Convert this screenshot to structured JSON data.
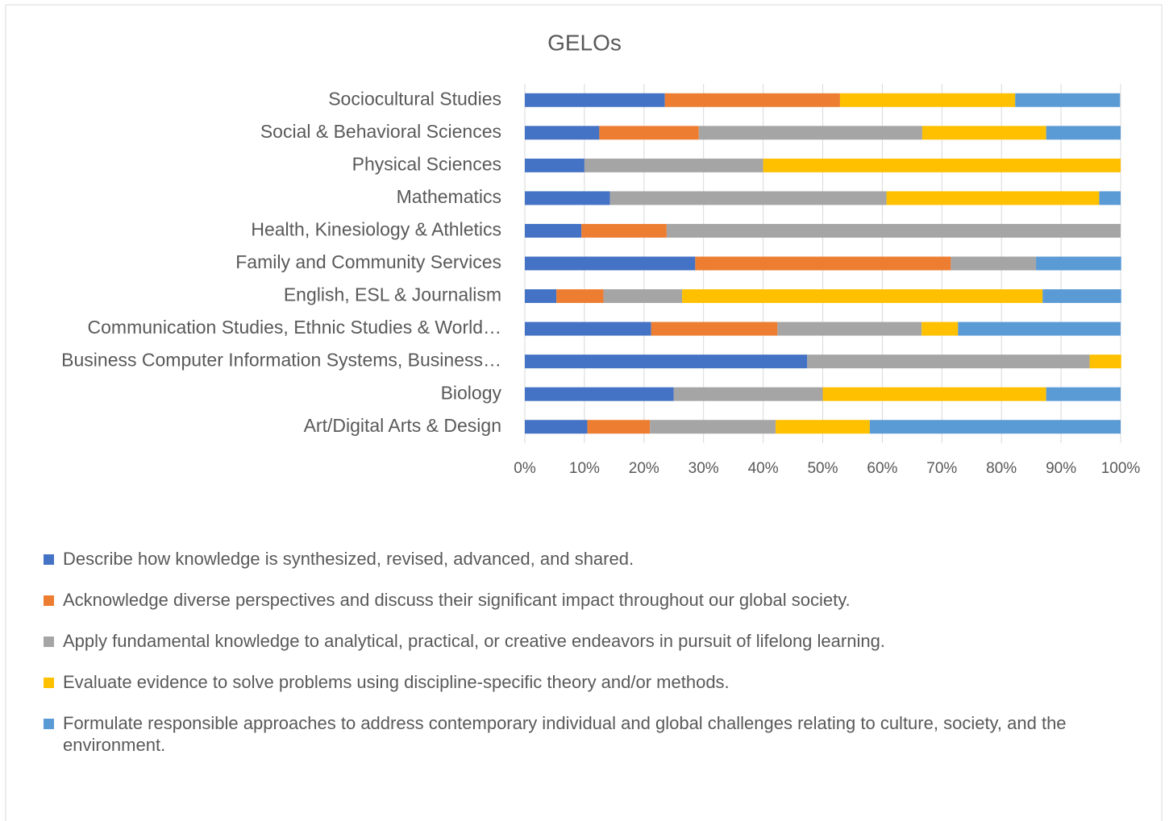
{
  "chart_data": {
    "type": "stacked_bar_horizontal",
    "title": "GELOs",
    "categories": [
      "Art/Digital Arts & Design",
      "Biology",
      "Business Computer Information Systems, Business…",
      "Communication Studies, Ethnic Studies & World…",
      "English, ESL & Journalism",
      "Family and Community Services",
      "Health, Kinesiology & Athletics",
      "Mathematics",
      "Physical Sciences",
      "Social & Behavioral Sciences",
      "Sociocultural Studies"
    ],
    "series": [
      {
        "name": "Describe how knowledge is synthesized, revised, advanced, and shared.",
        "color": "#4472c4",
        "values": [
          10.5,
          25,
          47.4,
          21.2,
          5.3,
          28.6,
          9.5,
          14.3,
          10,
          12.5,
          23.5
        ]
      },
      {
        "name": "Acknowledge diverse perspectives and discuss their significant impact throughout our global society.",
        "color": "#ed7d31",
        "values": [
          10.5,
          0,
          0,
          21.2,
          7.9,
          42.9,
          14.3,
          0,
          0,
          16.7,
          29.4
        ]
      },
      {
        "name": "Apply fundamental knowledge to analytical, practical, or creative endeavors in pursuit of lifelong learning.",
        "color": "#a5a5a5",
        "values": [
          21.1,
          25,
          47.4,
          24.2,
          13.2,
          14.3,
          76.2,
          46.4,
          30,
          37.5,
          0
        ]
      },
      {
        "name": "Evaluate evidence to solve problems using discipline-specific theory and/or methods.",
        "color": "#ffc000",
        "values": [
          15.8,
          37.5,
          5.3,
          6.1,
          60.5,
          0,
          0,
          35.7,
          60,
          20.8,
          29.4
        ]
      },
      {
        "name": "Formulate responsible approaches to address contemporary individual and global challenges relating to culture, society, and the environment.",
        "color": "#5b9bd5",
        "values": [
          42.1,
          12.5,
          0,
          27.3,
          13.2,
          14.3,
          0,
          3.6,
          0,
          12.5,
          17.6
        ]
      }
    ],
    "xlim": [
      0,
      100
    ],
    "xticks": [
      {
        "value": 0,
        "label": "0%"
      },
      {
        "value": 10,
        "label": "10%"
      },
      {
        "value": 20,
        "label": "20%"
      },
      {
        "value": 30,
        "label": "30%"
      },
      {
        "value": 40,
        "label": "40%"
      },
      {
        "value": 50,
        "label": "50%"
      },
      {
        "value": 60,
        "label": "60%"
      },
      {
        "value": 70,
        "label": "70%"
      },
      {
        "value": 80,
        "label": "80%"
      },
      {
        "value": 90,
        "label": "90%"
      },
      {
        "value": 100,
        "label": "100%"
      }
    ],
    "grid": true,
    "legend": "bottom"
  }
}
